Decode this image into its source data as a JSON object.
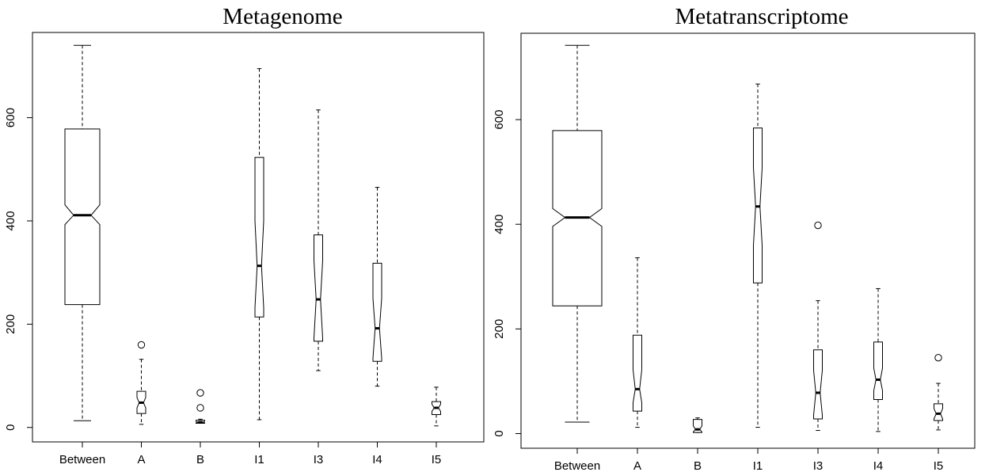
{
  "chart_data": [
    {
      "type": "boxplot",
      "title": "Metagenome",
      "xlabel": "",
      "ylabel": "",
      "ylim": [
        -28,
        765
      ],
      "yticks": [
        0,
        200,
        400,
        600
      ],
      "notched": true,
      "grid": false,
      "categories": [
        "Between",
        "A",
        "B",
        "I1",
        "I3",
        "I4",
        "I5"
      ],
      "boxes": [
        {
          "whisker_low": 13,
          "q1": 238,
          "median": 411,
          "q3": 578,
          "whisker_high": 740,
          "notch_low": 393,
          "notch_high": 431,
          "outliers": []
        },
        {
          "whisker_low": 6,
          "q1": 27,
          "median": 48,
          "q3": 70,
          "whisker_high": 132,
          "notch_low": 38,
          "notch_high": 58,
          "outliers": [
            160
          ]
        },
        {
          "whisker_low": 8,
          "q1": 8,
          "median": 10,
          "q3": 14,
          "whisker_high": 16,
          "notch_low": 9,
          "notch_high": 12,
          "outliers": [
            38,
            67
          ]
        },
        {
          "whisker_low": 15,
          "q1": 214,
          "median": 313,
          "q3": 523,
          "whisker_high": 695,
          "notch_low": 232,
          "notch_high": 400,
          "outliers": []
        },
        {
          "whisker_low": 110,
          "q1": 167,
          "median": 248,
          "q3": 373,
          "whisker_high": 615,
          "notch_low": 173,
          "notch_high": 323,
          "outliers": []
        },
        {
          "whisker_low": 80,
          "q1": 128,
          "median": 192,
          "q3": 318,
          "whisker_high": 465,
          "notch_low": 134,
          "notch_high": 250,
          "outliers": []
        },
        {
          "whisker_low": 3,
          "q1": 25,
          "median": 38,
          "q3": 50,
          "whisker_high": 78,
          "notch_low": 31,
          "notch_high": 45,
          "outliers": []
        }
      ]
    },
    {
      "type": "boxplot",
      "title": "Metatranscriptome",
      "xlabel": "",
      "ylabel": "",
      "ylim": [
        -28,
        765
      ],
      "yticks": [
        0,
        200,
        400,
        600
      ],
      "notched": true,
      "grid": false,
      "categories": [
        "Between",
        "A",
        "B",
        "I1",
        "I3",
        "I4",
        "I5"
      ],
      "boxes": [
        {
          "whisker_low": 22,
          "q1": 244,
          "median": 413,
          "q3": 579,
          "whisker_high": 742,
          "notch_low": 396,
          "notch_high": 430,
          "outliers": []
        },
        {
          "whisker_low": 12,
          "q1": 43,
          "median": 85,
          "q3": 188,
          "whisker_high": 336,
          "notch_low": 59,
          "notch_high": 122,
          "outliers": []
        },
        {
          "whisker_low": 2,
          "q1": 2,
          "median": 8,
          "q3": 27,
          "whisker_high": 30,
          "notch_low": 3,
          "notch_high": 15,
          "outliers": []
        },
        {
          "whisker_low": 12,
          "q1": 288,
          "median": 434,
          "q3": 584,
          "whisker_high": 668,
          "notch_low": 360,
          "notch_high": 508,
          "outliers": []
        },
        {
          "whisker_low": 6,
          "q1": 28,
          "median": 78,
          "q3": 160,
          "whisker_high": 254,
          "notch_low": 35,
          "notch_high": 121,
          "outliers": [
            398
          ]
        },
        {
          "whisker_low": 4,
          "q1": 65,
          "median": 103,
          "q3": 175,
          "whisker_high": 277,
          "notch_low": 82,
          "notch_high": 125,
          "outliers": []
        },
        {
          "whisker_low": 7,
          "q1": 25,
          "median": 38,
          "q3": 57,
          "whisker_high": 96,
          "notch_low": 28,
          "notch_high": 48,
          "outliers": [
            145
          ]
        }
      ]
    }
  ]
}
